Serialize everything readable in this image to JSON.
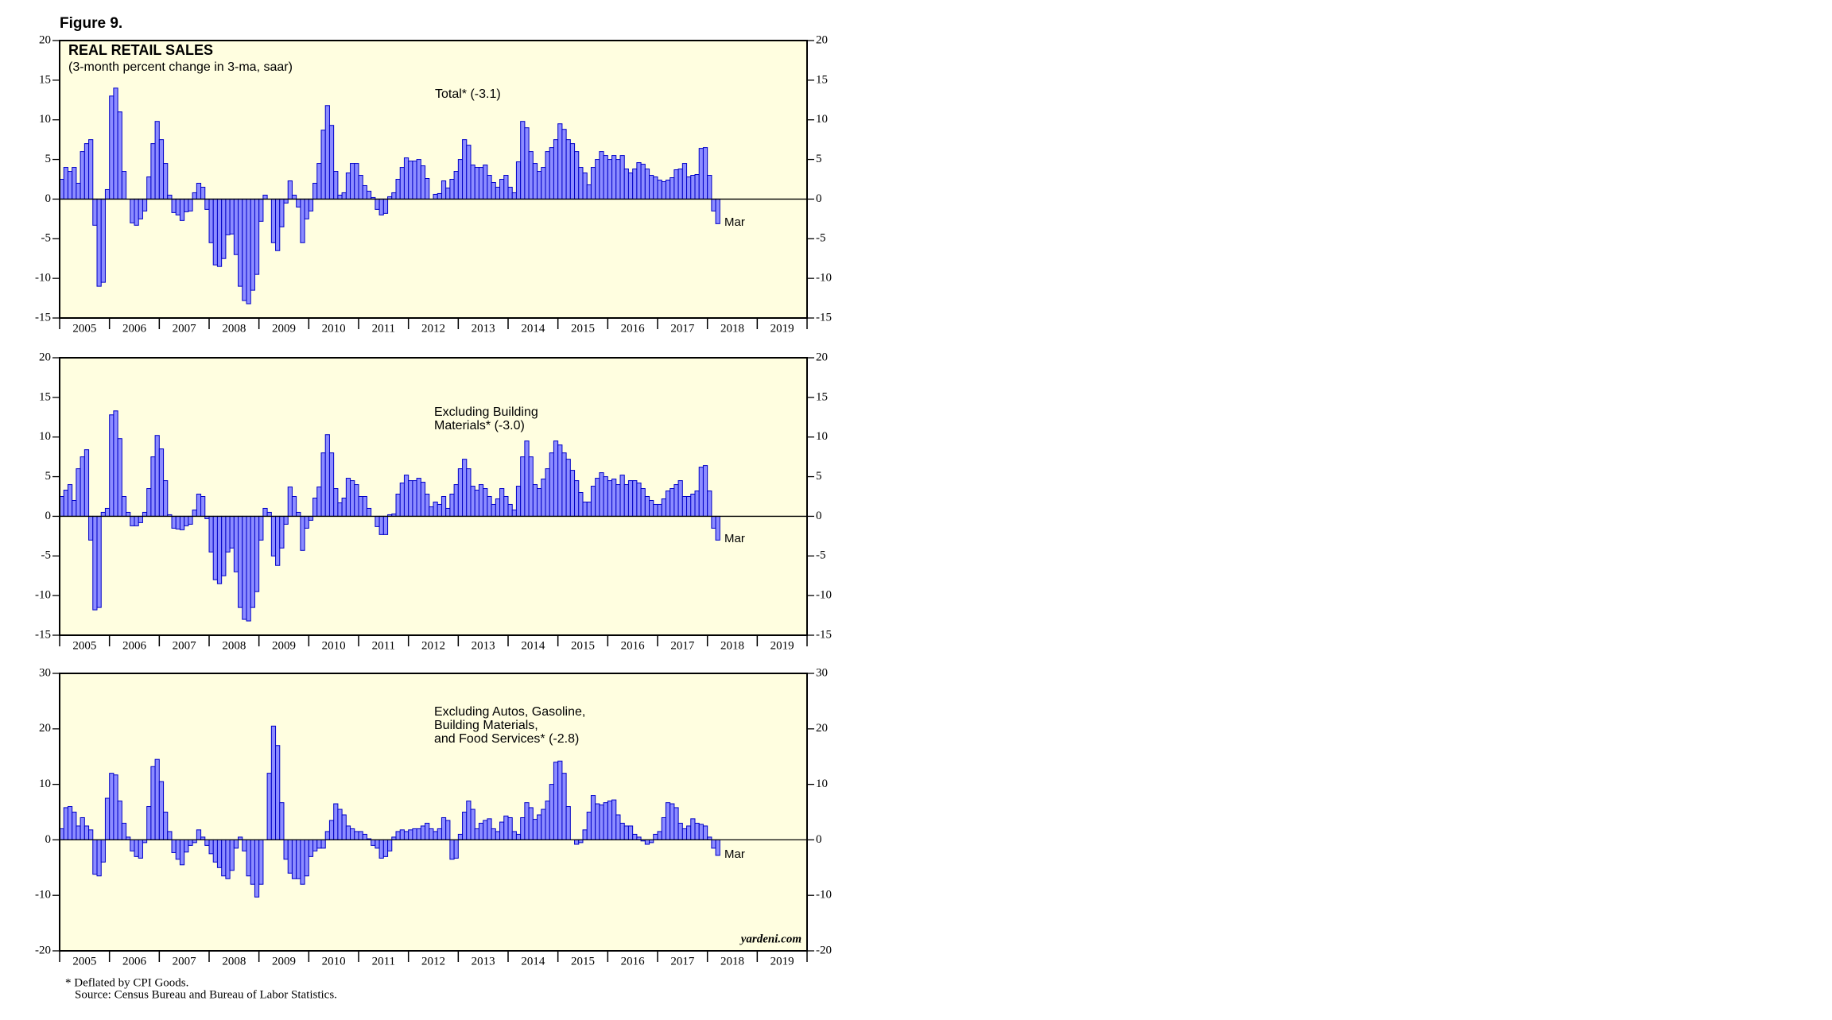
{
  "figure_title": "Figure 9.",
  "footnotes": [
    "* Deflated by CPI Goods.",
    "Source: Census Bureau and Bureau of Labor Statistics."
  ],
  "chart_data": [
    {
      "type": "bar",
      "title": "REAL RETAIL SALES",
      "subtitle": "(3-month percent change in 3-ma, saar)",
      "annotation": [
        "Total* (-3.1)"
      ],
      "end_label": "Mar",
      "color": "#8c8cff",
      "edge_color": "#0000c8",
      "background": "#fffee0",
      "xlim": [
        2005,
        2020
      ],
      "xticks": [
        2005,
        2006,
        2007,
        2008,
        2009,
        2010,
        2011,
        2012,
        2013,
        2014,
        2015,
        2016,
        2017,
        2018,
        2019
      ],
      "ylim": [
        -15,
        20
      ],
      "yticks": [
        -15,
        -10,
        -5,
        0,
        5,
        10,
        15,
        20
      ],
      "x": [
        2005.042,
        2005.125,
        2005.208,
        2005.292,
        2005.375,
        2005.458,
        2005.542,
        2005.625,
        2005.708,
        2005.792,
        2005.875,
        2005.958,
        2006.042,
        2006.125,
        2006.208,
        2006.292,
        2006.375,
        2006.458,
        2006.542,
        2006.625,
        2006.708,
        2006.792,
        2006.875,
        2006.958,
        2007.042,
        2007.125,
        2007.208,
        2007.292,
        2007.375,
        2007.458,
        2007.542,
        2007.625,
        2007.708,
        2007.792,
        2007.875,
        2007.958,
        2008.042,
        2008.125,
        2008.208,
        2008.292,
        2008.375,
        2008.458,
        2008.542,
        2008.625,
        2008.708,
        2008.792,
        2008.875,
        2008.958,
        2009.042,
        2009.125,
        2009.208,
        2009.292,
        2009.375,
        2009.458,
        2009.542,
        2009.625,
        2009.708,
        2009.792,
        2009.875,
        2009.958,
        2010.042,
        2010.125,
        2010.208,
        2010.292,
        2010.375,
        2010.458,
        2010.542,
        2010.625,
        2010.708,
        2010.792,
        2010.875,
        2010.958,
        2011.042,
        2011.125,
        2011.208,
        2011.292,
        2011.375,
        2011.458,
        2011.542,
        2011.625,
        2011.708,
        2011.792,
        2011.875,
        2011.958,
        2012.042,
        2012.125,
        2012.208,
        2012.292,
        2012.375,
        2012.458,
        2012.542,
        2012.625,
        2012.708,
        2012.792,
        2012.875,
        2012.958,
        2013.042,
        2013.125,
        2013.208,
        2013.292,
        2013.375,
        2013.458,
        2013.542,
        2013.625,
        2013.708,
        2013.792,
        2013.875,
        2013.958,
        2014.042,
        2014.125,
        2014.208,
        2014.292,
        2014.375,
        2014.458,
        2014.542,
        2014.625,
        2014.708,
        2014.792,
        2014.875,
        2014.958,
        2015.042,
        2015.125,
        2015.208,
        2015.292,
        2015.375,
        2015.458,
        2015.542,
        2015.625,
        2015.708,
        2015.792,
        2015.875,
        2015.958,
        2016.042,
        2016.125,
        2016.208,
        2016.292,
        2016.375,
        2016.458,
        2016.542,
        2016.625,
        2016.708,
        2016.792,
        2016.875,
        2016.958,
        2017.042,
        2017.125,
        2017.208,
        2017.292,
        2017.375,
        2017.458,
        2017.542,
        2017.625,
        2017.708,
        2017.792,
        2017.875,
        2017.958,
        2018.042,
        2018.125,
        2018.208
      ],
      "values": [
        2.5,
        4,
        3.5,
        4,
        2,
        6,
        7,
        7.5,
        -3.3,
        -11,
        -10.5,
        1.2,
        13,
        14,
        11,
        3.5,
        0,
        -3,
        -3.3,
        -2.5,
        -1.5,
        2.8,
        7,
        9.8,
        7.5,
        4.5,
        0.5,
        -1.7,
        -2,
        -2.7,
        -1.6,
        -1.5,
        0.8,
        2,
        1.5,
        -1.3,
        -5.5,
        -8.3,
        -8.5,
        -7.5,
        -4.5,
        -4.4,
        -7,
        -11,
        -12.8,
        -13.2,
        -11.5,
        -9.5,
        -2.8,
        0.5,
        0,
        -5.5,
        -6.5,
        -3.5,
        -0.5,
        2.3,
        0.5,
        -1,
        -5.5,
        -2.5,
        -1.5,
        2,
        4.5,
        8.7,
        11.8,
        9.3,
        3.5,
        0.5,
        0.8,
        3.3,
        4.5,
        4.5,
        3,
        1.7,
        1,
        0.2,
        -1.3,
        -2,
        -1.8,
        0.3,
        0.8,
        2.5,
        4,
        5.2,
        4.8,
        4.8,
        5,
        4.2,
        2.6,
        0,
        0.6,
        0.7,
        2.3,
        1.4,
        2.5,
        3.5,
        5,
        7.5,
        6.8,
        4.3,
        4,
        4,
        4.3,
        3,
        2.1,
        1.5,
        2.5,
        3,
        1.5,
        0.8,
        4.7,
        9.8,
        9,
        6,
        4.5,
        3.5,
        4,
        6,
        6.5,
        7.5,
        9.5,
        8.8,
        7.5,
        7,
        6,
        4,
        3.3,
        1.8,
        4,
        5,
        6,
        5.5,
        5,
        5.5,
        5,
        5.5,
        3.8,
        3.3,
        3.8,
        4.6,
        4.4,
        3.8,
        3,
        2.8,
        2.4,
        2.2,
        2.4,
        2.7,
        3.7,
        3.8,
        4.5,
        2.8,
        3,
        3.1,
        6.4,
        6.5,
        3,
        -1.5,
        -3.1
      ]
    },
    {
      "type": "bar",
      "annotation": [
        "Excluding Building",
        "Materials* (-3.0)"
      ],
      "end_label": "Mar",
      "color": "#8c8cff",
      "edge_color": "#0000c8",
      "background": "#fffee0",
      "xlim": [
        2005,
        2020
      ],
      "xticks": [
        2005,
        2006,
        2007,
        2008,
        2009,
        2010,
        2011,
        2012,
        2013,
        2014,
        2015,
        2016,
        2017,
        2018,
        2019
      ],
      "ylim": [
        -15,
        20
      ],
      "yticks": [
        -15,
        -10,
        -5,
        0,
        5,
        10,
        15,
        20
      ],
      "x": [
        2005.042,
        2005.125,
        2005.208,
        2005.292,
        2005.375,
        2005.458,
        2005.542,
        2005.625,
        2005.708,
        2005.792,
        2005.875,
        2005.958,
        2006.042,
        2006.125,
        2006.208,
        2006.292,
        2006.375,
        2006.458,
        2006.542,
        2006.625,
        2006.708,
        2006.792,
        2006.875,
        2006.958,
        2007.042,
        2007.125,
        2007.208,
        2007.292,
        2007.375,
        2007.458,
        2007.542,
        2007.625,
        2007.708,
        2007.792,
        2007.875,
        2007.958,
        2008.042,
        2008.125,
        2008.208,
        2008.292,
        2008.375,
        2008.458,
        2008.542,
        2008.625,
        2008.708,
        2008.792,
        2008.875,
        2008.958,
        2009.042,
        2009.125,
        2009.208,
        2009.292,
        2009.375,
        2009.458,
        2009.542,
        2009.625,
        2009.708,
        2009.792,
        2009.875,
        2009.958,
        2010.042,
        2010.125,
        2010.208,
        2010.292,
        2010.375,
        2010.458,
        2010.542,
        2010.625,
        2010.708,
        2010.792,
        2010.875,
        2010.958,
        2011.042,
        2011.125,
        2011.208,
        2011.292,
        2011.375,
        2011.458,
        2011.542,
        2011.625,
        2011.708,
        2011.792,
        2011.875,
        2011.958,
        2012.042,
        2012.125,
        2012.208,
        2012.292,
        2012.375,
        2012.458,
        2012.542,
        2012.625,
        2012.708,
        2012.792,
        2012.875,
        2012.958,
        2013.042,
        2013.125,
        2013.208,
        2013.292,
        2013.375,
        2013.458,
        2013.542,
        2013.625,
        2013.708,
        2013.792,
        2013.875,
        2013.958,
        2014.042,
        2014.125,
        2014.208,
        2014.292,
        2014.375,
        2014.458,
        2014.542,
        2014.625,
        2014.708,
        2014.792,
        2014.875,
        2014.958,
        2015.042,
        2015.125,
        2015.208,
        2015.292,
        2015.375,
        2015.458,
        2015.542,
        2015.625,
        2015.708,
        2015.792,
        2015.875,
        2015.958,
        2016.042,
        2016.125,
        2016.208,
        2016.292,
        2016.375,
        2016.458,
        2016.542,
        2016.625,
        2016.708,
        2016.792,
        2016.875,
        2016.958,
        2017.042,
        2017.125,
        2017.208,
        2017.292,
        2017.375,
        2017.458,
        2017.542,
        2017.625,
        2017.708,
        2017.792,
        2017.875,
        2017.958,
        2018.042,
        2018.125,
        2018.208
      ],
      "values": [
        2.5,
        3.3,
        4,
        2,
        6,
        7.5,
        8.4,
        -3,
        -11.8,
        -11.5,
        0.5,
        1,
        12.8,
        13.3,
        9.8,
        2.5,
        0.5,
        -1.2,
        -1.2,
        -0.8,
        0.5,
        3.5,
        7.5,
        10.2,
        8.5,
        4.5,
        0.2,
        -1.5,
        -1.6,
        -1.7,
        -1.2,
        -1,
        0.8,
        2.8,
        2.5,
        -0.3,
        -4.5,
        -8,
        -8.5,
        -7.5,
        -4.5,
        -4,
        -7,
        -11.5,
        -13,
        -13.2,
        -11.5,
        -9.5,
        -3,
        1,
        0.5,
        -5,
        -6.2,
        -4,
        -1,
        3.7,
        2.5,
        0.5,
        -4.3,
        -1.5,
        -0.5,
        2.3,
        3.7,
        8,
        10.3,
        8,
        3.5,
        1.7,
        2.3,
        4.8,
        4.5,
        4,
        2.5,
        2.5,
        1,
        0,
        -1.3,
        -2.3,
        -2.3,
        0.2,
        0.3,
        2.8,
        4.2,
        5.2,
        4.5,
        4.5,
        4.8,
        4.3,
        2.8,
        1.2,
        1.8,
        1.5,
        2.5,
        1,
        2.8,
        4,
        6,
        7.2,
        6,
        3.8,
        3.3,
        4,
        3.5,
        2.5,
        1.5,
        2.2,
        3.5,
        2.5,
        1.5,
        0.8,
        3.8,
        7.5,
        9.5,
        7.5,
        4,
        3.5,
        4.7,
        6,
        8,
        9.5,
        9,
        8,
        7.2,
        5.8,
        4.5,
        3,
        1.8,
        1.8,
        3.8,
        4.8,
        5.5,
        5,
        4.5,
        4.7,
        4,
        5.2,
        4,
        4.5,
        4.5,
        4.2,
        3.5,
        2.5,
        2,
        1.5,
        1.5,
        2.2,
        3.2,
        3.5,
        4,
        4.5,
        2.5,
        2.5,
        2.8,
        3.2,
        6.2,
        6.4,
        3.2,
        -1.5,
        -3
      ]
    },
    {
      "type": "bar",
      "annotation": [
        "Excluding Autos, Gasoline,",
        "Building Materials,",
        "and Food Services* (-2.8)"
      ],
      "end_label": "Mar",
      "credit": "yardeni.com",
      "color": "#8c8cff",
      "edge_color": "#0000c8",
      "background": "#fffee0",
      "xlim": [
        2005,
        2020
      ],
      "xticks": [
        2005,
        2006,
        2007,
        2008,
        2009,
        2010,
        2011,
        2012,
        2013,
        2014,
        2015,
        2016,
        2017,
        2018,
        2019
      ],
      "ylim": [
        -20,
        30
      ],
      "yticks": [
        -20,
        -10,
        0,
        10,
        20,
        30
      ],
      "x": [
        2005.042,
        2005.125,
        2005.208,
        2005.292,
        2005.375,
        2005.458,
        2005.542,
        2005.625,
        2005.708,
        2005.792,
        2005.875,
        2005.958,
        2006.042,
        2006.125,
        2006.208,
        2006.292,
        2006.375,
        2006.458,
        2006.542,
        2006.625,
        2006.708,
        2006.792,
        2006.875,
        2006.958,
        2007.042,
        2007.125,
        2007.208,
        2007.292,
        2007.375,
        2007.458,
        2007.542,
        2007.625,
        2007.708,
        2007.792,
        2007.875,
        2007.958,
        2008.042,
        2008.125,
        2008.208,
        2008.292,
        2008.375,
        2008.458,
        2008.542,
        2008.625,
        2008.708,
        2008.792,
        2008.875,
        2008.958,
        2009.042,
        2009.125,
        2009.208,
        2009.292,
        2009.375,
        2009.458,
        2009.542,
        2009.625,
        2009.708,
        2009.792,
        2009.875,
        2009.958,
        2010.042,
        2010.125,
        2010.208,
        2010.292,
        2010.375,
        2010.458,
        2010.542,
        2010.625,
        2010.708,
        2010.792,
        2010.875,
        2010.958,
        2011.042,
        2011.125,
        2011.208,
        2011.292,
        2011.375,
        2011.458,
        2011.542,
        2011.625,
        2011.708,
        2011.792,
        2011.875,
        2011.958,
        2012.042,
        2012.125,
        2012.208,
        2012.292,
        2012.375,
        2012.458,
        2012.542,
        2012.625,
        2012.708,
        2012.792,
        2012.875,
        2012.958,
        2013.042,
        2013.125,
        2013.208,
        2013.292,
        2013.375,
        2013.458,
        2013.542,
        2013.625,
        2013.708,
        2013.792,
        2013.875,
        2013.958,
        2014.042,
        2014.125,
        2014.208,
        2014.292,
        2014.375,
        2014.458,
        2014.542,
        2014.625,
        2014.708,
        2014.792,
        2014.875,
        2014.958,
        2015.042,
        2015.125,
        2015.208,
        2015.292,
        2015.375,
        2015.458,
        2015.542,
        2015.625,
        2015.708,
        2015.792,
        2015.875,
        2015.958,
        2016.042,
        2016.125,
        2016.208,
        2016.292,
        2016.375,
        2016.458,
        2016.542,
        2016.625,
        2016.708,
        2016.792,
        2016.875,
        2016.958,
        2017.042,
        2017.125,
        2017.208,
        2017.292,
        2017.375,
        2017.458,
        2017.542,
        2017.625,
        2017.708,
        2017.792,
        2017.875,
        2017.958,
        2018.042,
        2018.125,
        2018.208
      ],
      "values": [
        2,
        5.8,
        6,
        5,
        2.5,
        4,
        2.5,
        1.8,
        -6.2,
        -6.5,
        -4,
        7.5,
        12,
        11.7,
        7,
        3,
        0.5,
        -2,
        -3,
        -3.3,
        -0.5,
        6,
        13.2,
        14.5,
        10.5,
        5,
        1.5,
        -2.3,
        -3.5,
        -4.5,
        -2.2,
        -1,
        -0.5,
        1.8,
        0.5,
        -1,
        -2.5,
        -4,
        -5,
        -6.5,
        -7,
        -5.5,
        -1.5,
        0.5,
        -2,
        -6.5,
        -8,
        -10.3,
        -8,
        0,
        12,
        20.5,
        17,
        6.7,
        -3.5,
        -6,
        -7,
        -7,
        -8,
        -6.5,
        -3,
        -2,
        -1.5,
        -1.5,
        1.5,
        3.5,
        6.5,
        5.5,
        4.5,
        2.5,
        2,
        1.5,
        1.5,
        1,
        0.2,
        -1,
        -1.5,
        -3.3,
        -3,
        -2,
        0.5,
        1.5,
        1.8,
        1.5,
        1.8,
        2,
        2,
        2.5,
        3,
        2,
        1.5,
        2,
        4,
        3.5,
        -3.5,
        -3.3,
        1,
        5,
        7,
        5.5,
        2,
        3,
        3.5,
        3.8,
        2,
        1.5,
        3.2,
        4.3,
        4,
        1.5,
        1,
        4,
        6.7,
        5.8,
        3.7,
        4.5,
        5.5,
        7,
        10,
        14,
        14.2,
        12,
        6,
        0,
        -0.8,
        -0.5,
        1.8,
        5,
        8,
        6.5,
        6.3,
        6.7,
        7,
        7.2,
        4.5,
        3,
        2.5,
        2.5,
        1,
        0.5,
        -0.2,
        -0.8,
        -0.5,
        1,
        1.5,
        4,
        6.7,
        6.5,
        5.8,
        3,
        2,
        2.5,
        3.8,
        3,
        2.8,
        2.5,
        0.5,
        -1.5,
        -2.8
      ]
    }
  ]
}
